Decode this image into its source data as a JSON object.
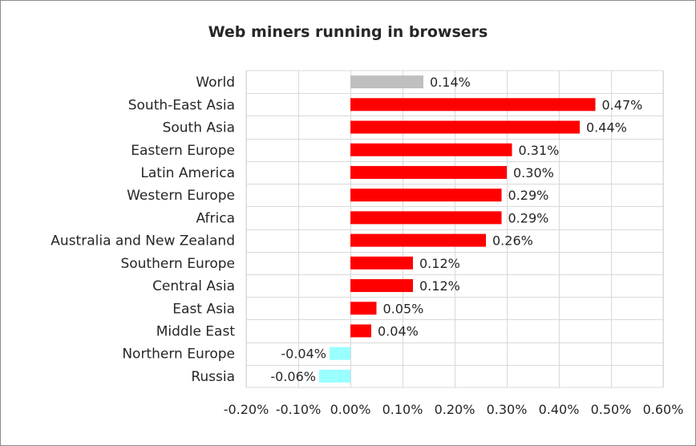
{
  "chart_data": {
    "type": "bar",
    "orientation": "horizontal",
    "title": "Web miners running in browsers",
    "categories": [
      "World",
      "South-East Asia",
      "South Asia",
      "Eastern Europe",
      "Latin America",
      "Western Europe",
      "Africa",
      "Australia and New Zealand",
      "Southern Europe",
      "Central Asia",
      "East Asia",
      "Middle East",
      "Northern Europe",
      "Russia"
    ],
    "values": [
      0.14,
      0.47,
      0.44,
      0.31,
      0.3,
      0.29,
      0.29,
      0.26,
      0.12,
      0.12,
      0.05,
      0.04,
      -0.04,
      -0.06
    ],
    "data_labels": [
      "0.14%",
      "0.47%",
      "0.44%",
      "0.31%",
      "0.30%",
      "0.29%",
      "0.29%",
      "0.26%",
      "0.12%",
      "0.12%",
      "0.05%",
      "0.04%",
      "-0.04%",
      "-0.06%"
    ],
    "bar_colors": [
      "#bfbfbf",
      "#ff0000",
      "#ff0000",
      "#ff0000",
      "#ff0000",
      "#ff0000",
      "#ff0000",
      "#ff0000",
      "#ff0000",
      "#ff0000",
      "#ff0000",
      "#ff0000",
      "#99ffff",
      "#99ffff"
    ],
    "xlim": [
      -0.2,
      0.6
    ],
    "xticks": [
      -0.2,
      -0.1,
      0.0,
      0.1,
      0.2,
      0.3,
      0.4,
      0.5,
      0.6
    ],
    "xtick_labels": [
      "-0.20%",
      "-0.10%",
      "0.00%",
      "0.10%",
      "0.20%",
      "0.30%",
      "0.40%",
      "0.50%",
      "0.60%"
    ],
    "grid": true,
    "legend": false,
    "xlabel": "",
    "ylabel": ""
  }
}
